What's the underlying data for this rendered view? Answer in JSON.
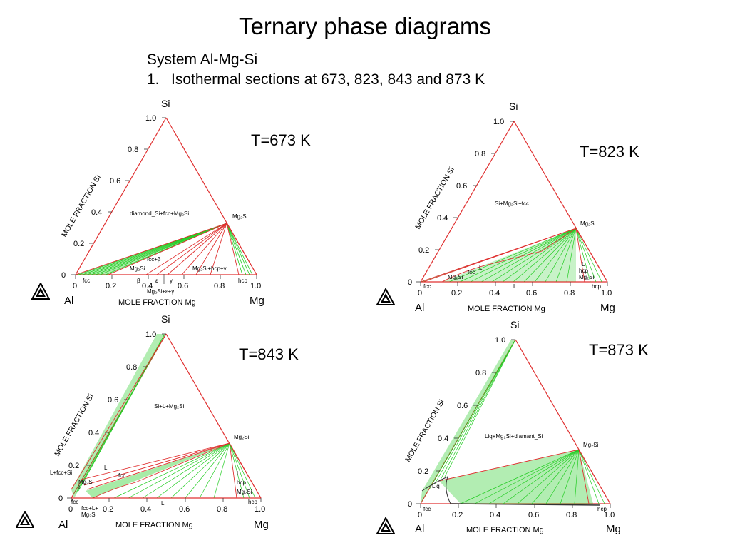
{
  "slide": {
    "title": "Ternary phase diagrams",
    "subtitle_line1": "System Al-Mg-Si",
    "subtitle_number": "1.",
    "subtitle_line2": "Isothermal sections at 673, 823, 843 and 873 K"
  },
  "colors": {
    "boundary": "#e03030",
    "tie_line": "#22cc22",
    "axis": "#333333"
  },
  "axis_common": {
    "apex_top": "Si",
    "corner_left": "Al",
    "corner_right": "Mg",
    "left_axis_title": "MOLE FRACTION Si",
    "bottom_axis_title": "MOLE FRACTION Mg",
    "left_ticks": [
      "0",
      "0.2",
      "0.4",
      "0.6",
      "0.8",
      "1.0"
    ],
    "bottom_ticks": [
      "0",
      "0.2",
      "0.4",
      "0.6",
      "0.8",
      "1.0"
    ],
    "logo_icon": "thermo-calc-logo-icon"
  },
  "diagrams": [
    {
      "temperature": "T=673 K",
      "labels": {
        "top_region": "diamond_Si+fcc+Mg₂Si",
        "compound": "Mg₂Si",
        "fcc_beta": "fcc+β",
        "mg2si_left": "Mg₂Si",
        "right_region": "Mg₂Si+hcp+γ",
        "hcp": "hcp",
        "fcc": "fcc",
        "beta": "β",
        "epsilon": "ε",
        "gamma": "γ",
        "bottom_region": "Mg₂Si+ε+γ"
      }
    },
    {
      "temperature": "T=823 K",
      "labels": {
        "top_region": "Si+Mg₂Si+fcc",
        "compound": "Mg₂Si",
        "L1": "L",
        "fcc": "fcc",
        "mg2si_left": "Mg₂Si",
        "L2": "L",
        "L3": "L",
        "hcp1": "hcp",
        "mg2si_right": "Mg₂Si",
        "fcc_bottom": "fcc",
        "hcp_bottom": "hcp"
      }
    },
    {
      "temperature": "T=843 K",
      "labels": {
        "top_region": "Si+L+Mg₂Si",
        "compound": "Mg₂Si",
        "L1": "L",
        "fcc": "fcc",
        "L_fcc_si": "L+fcc+Si",
        "mg2si_left": "Mg₂Si",
        "L2": "L",
        "L3": "L",
        "L4": "L",
        "hcp1": "hcp",
        "mg2si_right": "Mg₂Si",
        "fcc_bottom": "fcc",
        "fcc_l_line1": "fcc+L+",
        "fcc_l_line2": "Mg₂Si",
        "hcp_bottom": "hcp"
      }
    },
    {
      "temperature": "T=873 K",
      "labels": {
        "top_region": "Liq+Mg₂Si+diamant_Si",
        "compound": "Mg₂Si",
        "liq": "Liq",
        "fcc": "fcc",
        "hcp": "hcp"
      }
    }
  ]
}
